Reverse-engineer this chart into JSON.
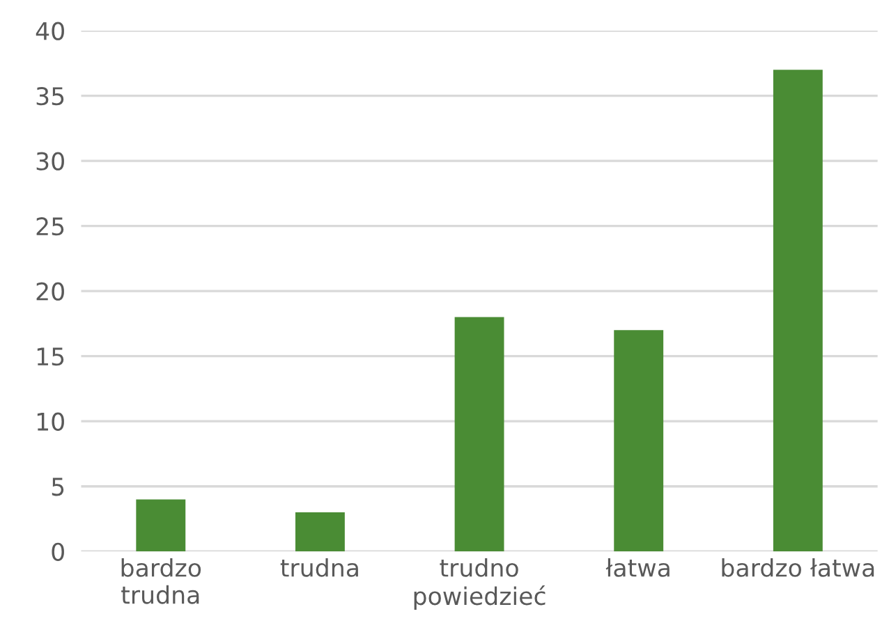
{
  "chart_data": {
    "type": "bar",
    "categories": [
      "bardzo\ntrudna",
      "trudna",
      "trudno\npowiedzieć",
      "łatwa",
      "bardzo łatwa"
    ],
    "values": [
      4,
      3,
      18,
      17,
      37
    ],
    "color": "#4a8c34",
    "ylim": [
      0,
      40
    ],
    "yticks": [
      0,
      5,
      10,
      15,
      20,
      25,
      30,
      35,
      40
    ],
    "grid": "y",
    "legend": false
  }
}
